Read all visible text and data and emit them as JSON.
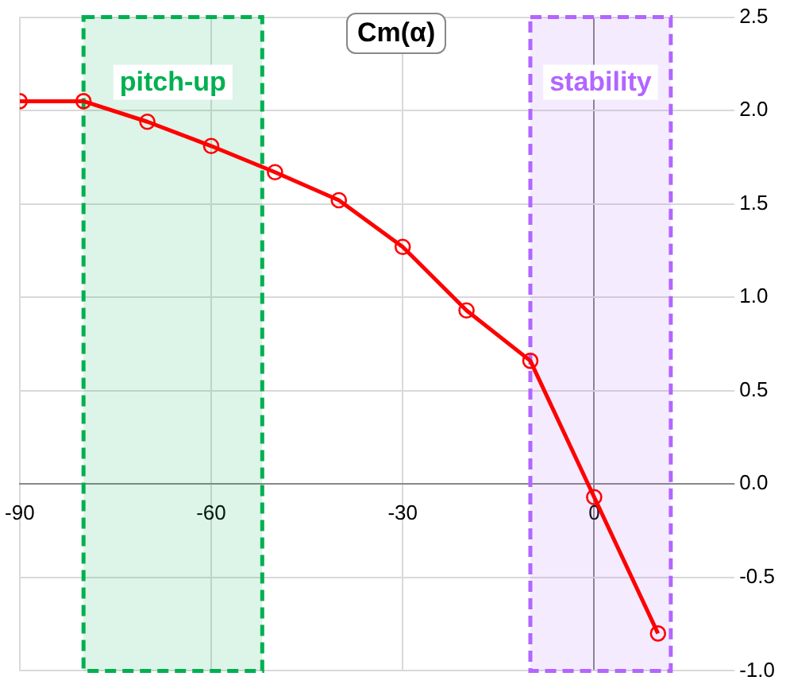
{
  "chart_data": {
    "type": "line",
    "title": "Cm(α)",
    "x": [
      -90,
      -80,
      -70,
      -60,
      -50,
      -40,
      -30,
      -20,
      -10,
      0,
      10
    ],
    "series": [
      {
        "color": "#ff0000",
        "values": [
          2.05,
          2.05,
          1.94,
          1.81,
          1.67,
          1.52,
          1.27,
          0.93,
          0.66,
          -0.07,
          -0.8
        ]
      }
    ],
    "xlim": [
      -90,
      20
    ],
    "xticks": [
      -90,
      -60,
      -30,
      0
    ],
    "ylim": [
      -1.0,
      2.5
    ],
    "yticks": [
      {
        "value": -1.0,
        "label": "-1.0"
      },
      {
        "value": -0.5,
        "label": "-0.5"
      },
      {
        "value": 0,
        "label": "0.0"
      },
      {
        "value": 0.5,
        "label": "0.5"
      },
      {
        "value": 1.0,
        "label": "1.0"
      },
      {
        "value": 1.5,
        "label": "1.5"
      },
      {
        "value": 2.0,
        "label": "2.0"
      },
      {
        "value": 2.5,
        "label": "2.5"
      }
    ],
    "grid": true,
    "marker": "circle",
    "line_style": "solid",
    "bands": [
      {
        "axis": "x",
        "from": -80,
        "to": -52,
        "label": "pitch-up",
        "color": "#00b050"
      },
      {
        "axis": "x",
        "from": -10,
        "to": 12,
        "label": "stability",
        "color": "#b266ff"
      }
    ]
  }
}
